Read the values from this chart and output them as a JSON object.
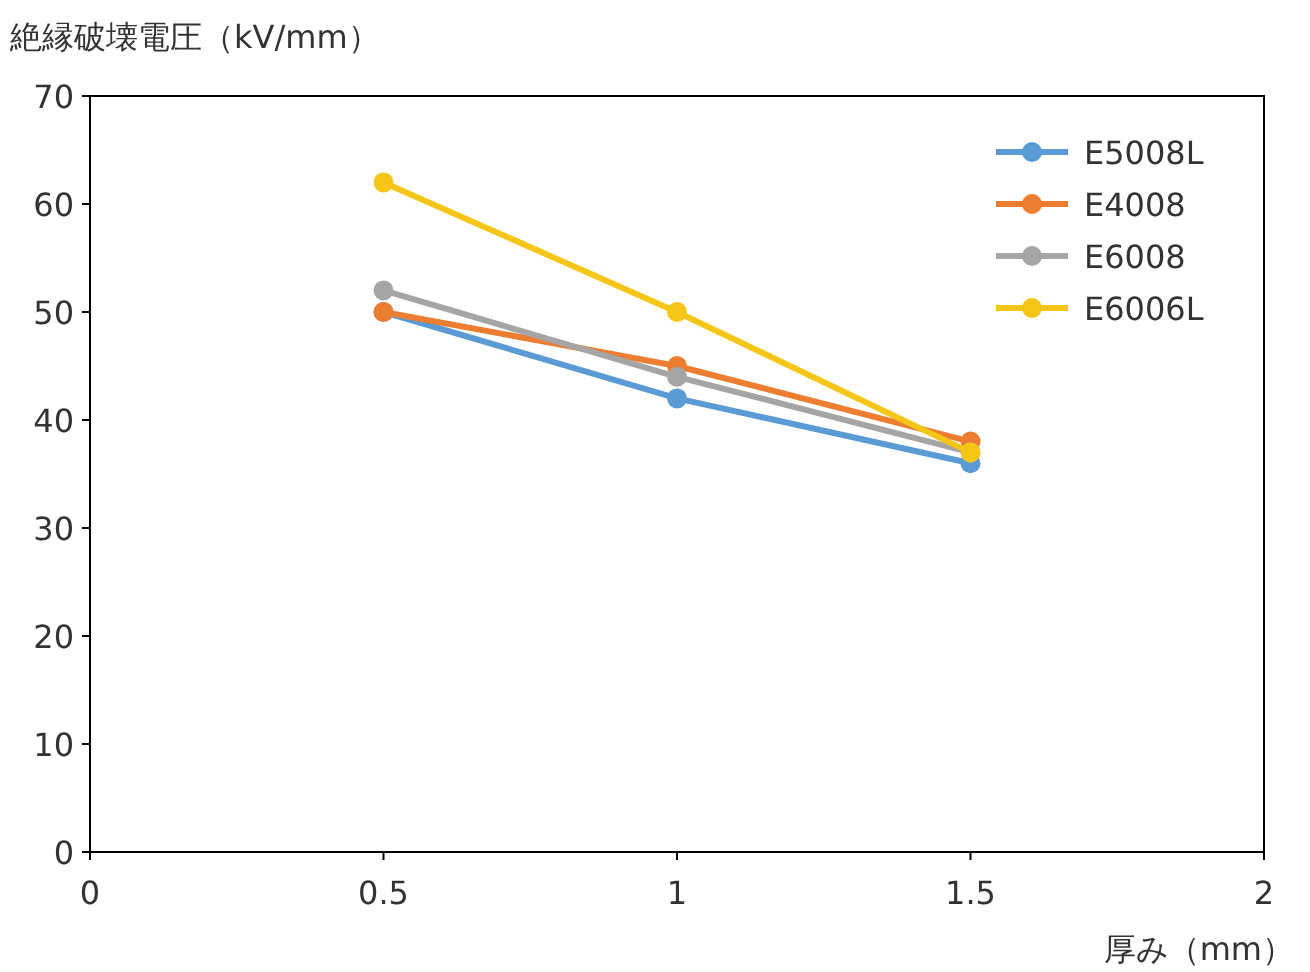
{
  "chart_data": {
    "type": "line",
    "ylabel": "絶縁破壊電圧（kV/mm）",
    "xlabel": "厚み（mm）",
    "xlim": [
      0,
      2
    ],
    "xticks": [
      0,
      0.5,
      1,
      1.5,
      2
    ],
    "ylim": [
      0,
      70
    ],
    "yticks": [
      0,
      10,
      20,
      30,
      40,
      50,
      60,
      70
    ],
    "x": [
      0.5,
      1,
      1.5
    ],
    "marker": "circle",
    "legend": "top right",
    "grid": false,
    "series": [
      {
        "name": "E5008L",
        "color": "#5b9bd5",
        "values": [
          50,
          42,
          36
        ]
      },
      {
        "name": "E4008",
        "color": "#ed7d31",
        "values": [
          50,
          45,
          38
        ]
      },
      {
        "name": "E6008",
        "color": "#a5a5a5",
        "values": [
          52,
          44,
          37
        ]
      },
      {
        "name": "E6006L",
        "color": "#f5c518",
        "values": [
          62,
          50,
          37
        ]
      }
    ]
  }
}
